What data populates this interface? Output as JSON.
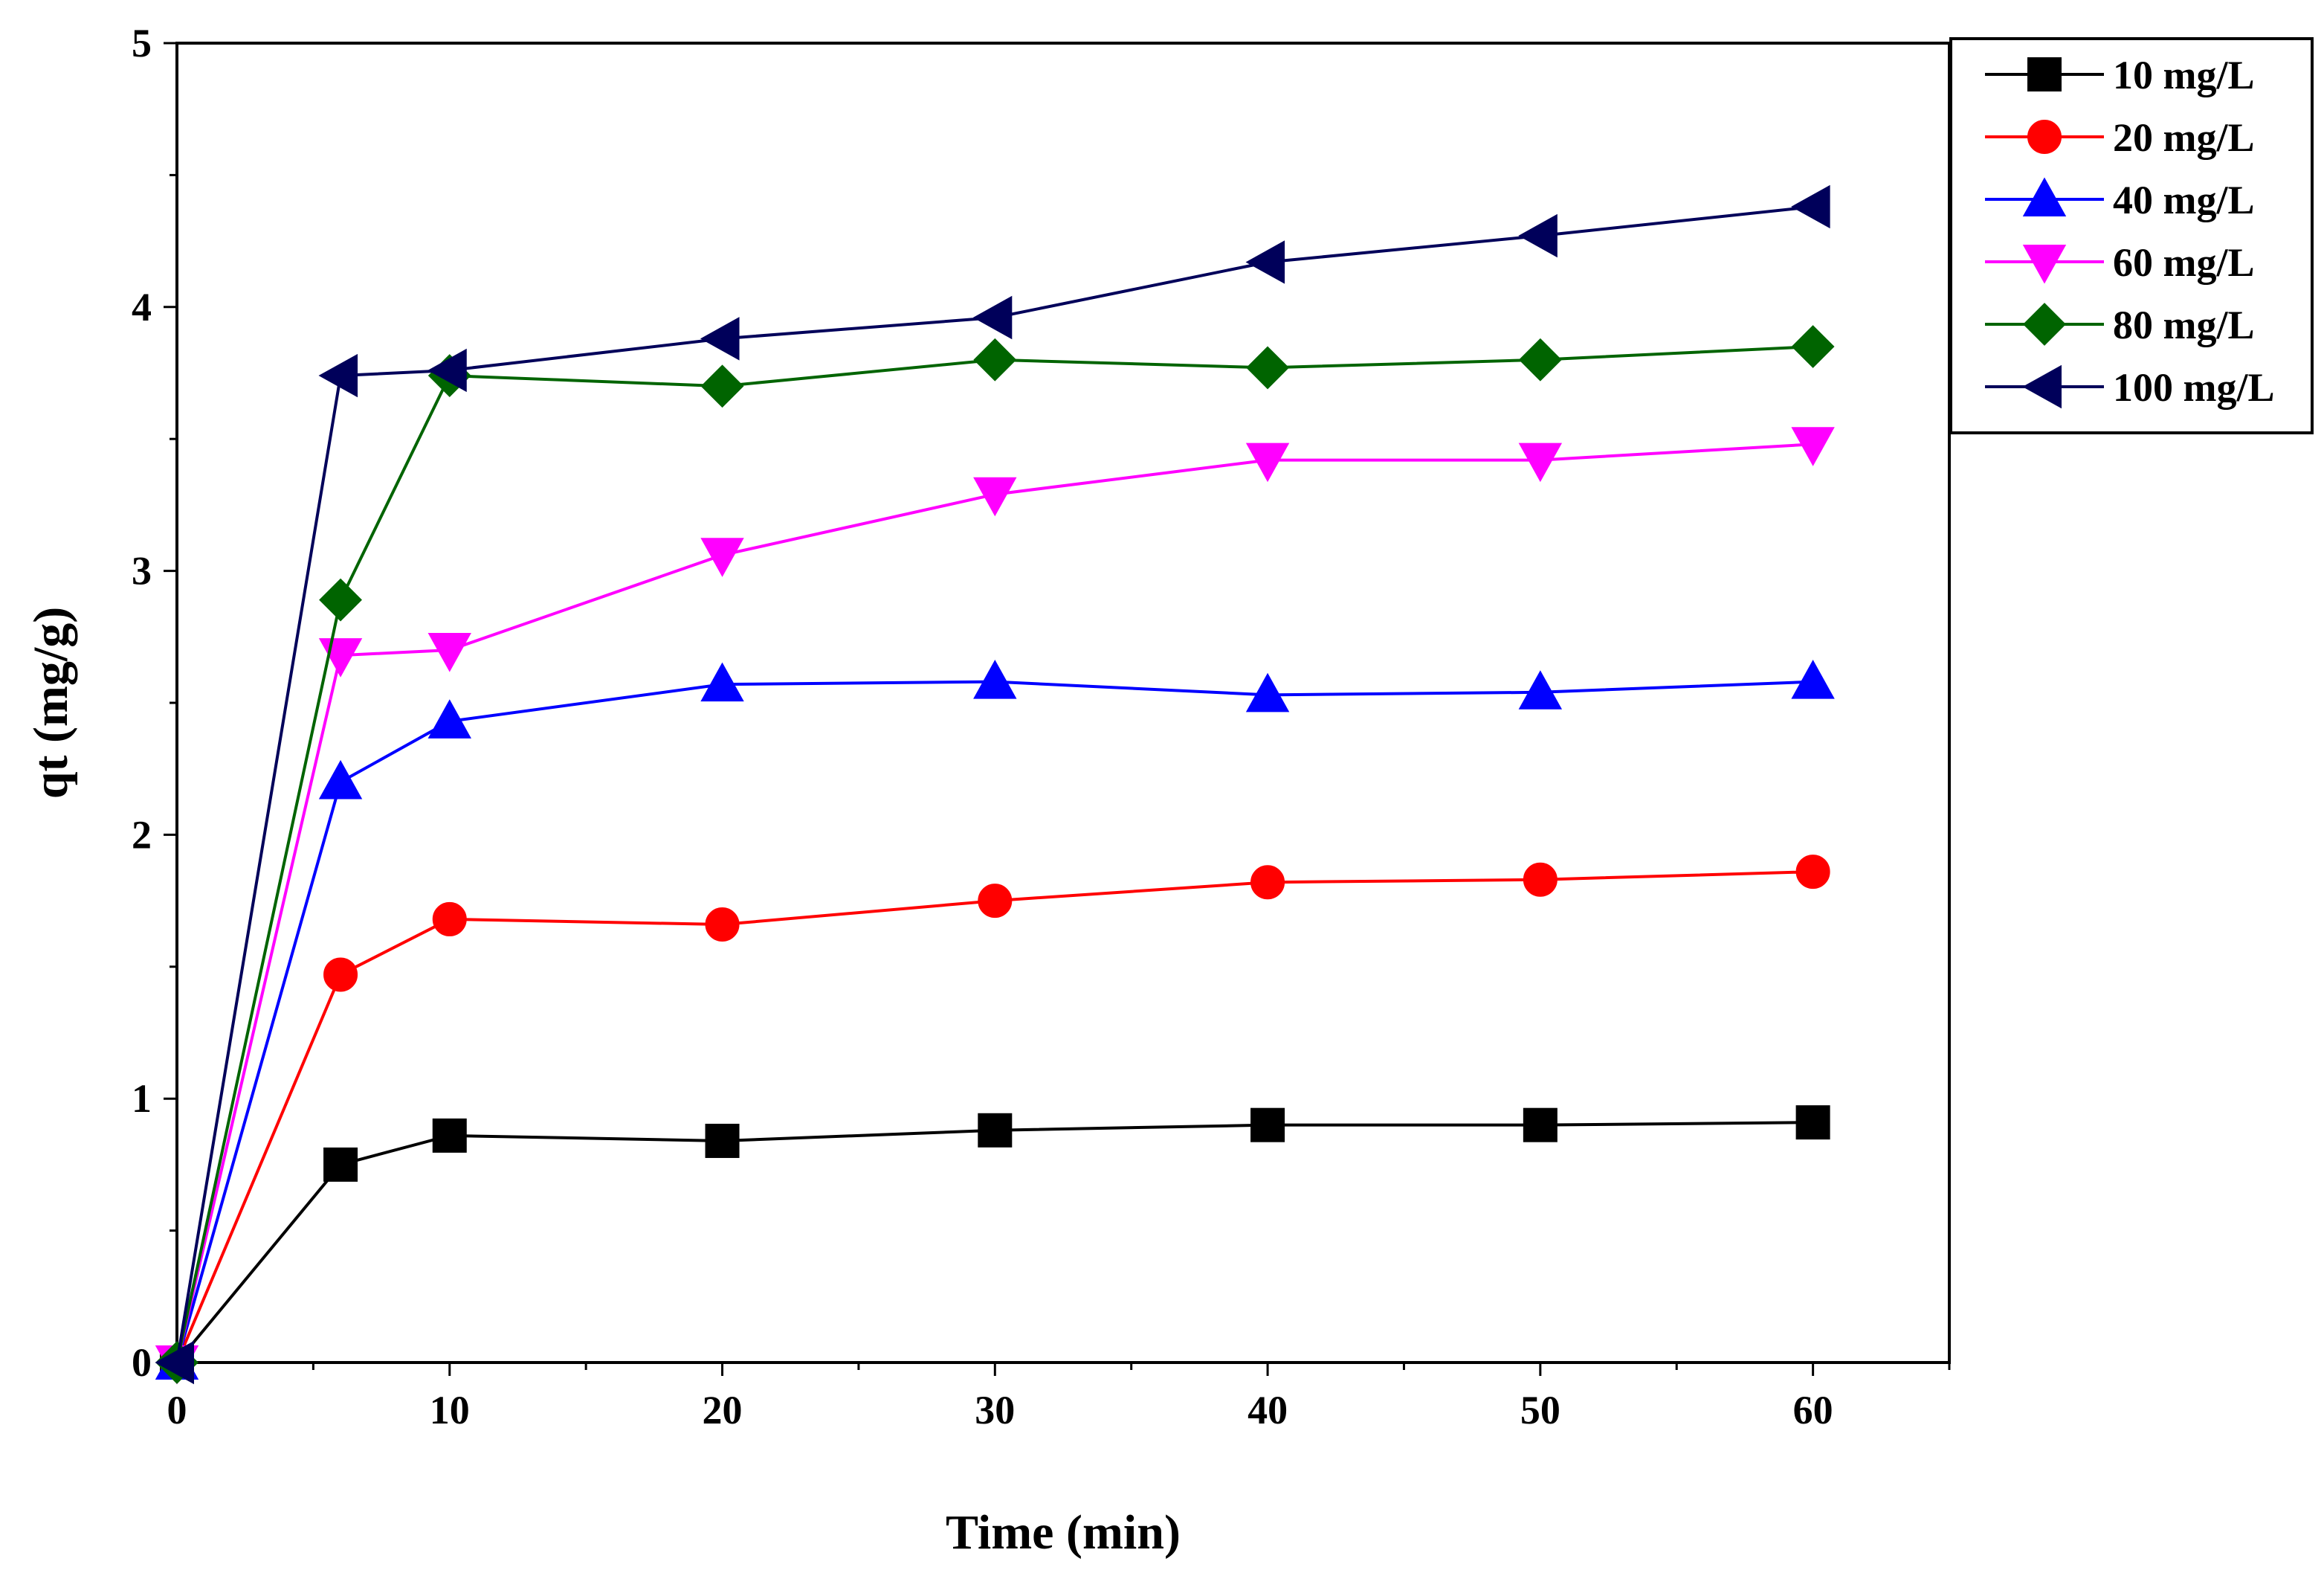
{
  "chart_data": {
    "type": "line",
    "title": "",
    "xlabel": "Time (min)",
    "ylabel": "qt (mg/g)",
    "xlim": [
      0,
      65
    ],
    "ylim": [
      0,
      5
    ],
    "xticks": [
      0,
      10,
      20,
      30,
      40,
      50,
      60
    ],
    "yticks": [
      0,
      1,
      2,
      3,
      4,
      5
    ],
    "grid": false,
    "legend_position": "top-right",
    "x": [
      0,
      6,
      10,
      20,
      30,
      40,
      50,
      60
    ],
    "series": [
      {
        "name": "10 mg/L",
        "marker": "square",
        "color": "#000000",
        "values": [
          0,
          0.75,
          0.86,
          0.84,
          0.88,
          0.9,
          0.9,
          0.91
        ]
      },
      {
        "name": "20 mg/L",
        "marker": "circle",
        "color": "#ff0000",
        "values": [
          0,
          1.47,
          1.68,
          1.66,
          1.75,
          1.82,
          1.83,
          1.86
        ]
      },
      {
        "name": "40 mg/L",
        "marker": "triangle-up",
        "color": "#0000ff",
        "values": [
          0,
          2.2,
          2.43,
          2.57,
          2.58,
          2.53,
          2.54,
          2.58
        ]
      },
      {
        "name": "60 mg/L",
        "marker": "triangle-down",
        "color": "#ff00ff",
        "values": [
          0,
          2.68,
          2.7,
          3.06,
          3.29,
          3.42,
          3.42,
          3.48
        ]
      },
      {
        "name": "80 mg/L",
        "marker": "diamond",
        "color": "#006400",
        "values": [
          0,
          2.89,
          3.74,
          3.7,
          3.8,
          3.77,
          3.8,
          3.85
        ]
      },
      {
        "name": "100 mg/L",
        "marker": "triangle-left",
        "color": "#00005a",
        "values": [
          0,
          3.74,
          3.76,
          3.88,
          3.96,
          4.17,
          4.27,
          4.38
        ]
      }
    ]
  }
}
